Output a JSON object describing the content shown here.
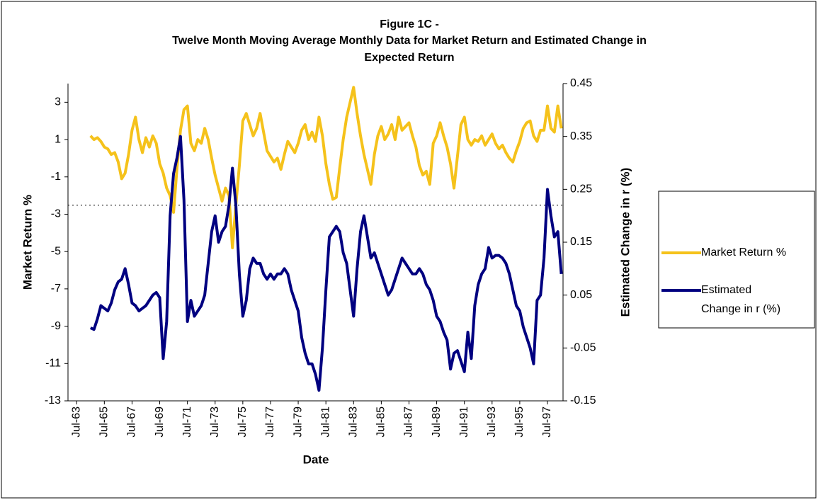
{
  "chart_data": {
    "type": "line",
    "title_lines": [
      "Figure 1C -",
      "Twelve Month Moving Average Monthly Data for Market Return and Estimated Change in",
      "Expected Return"
    ],
    "x_label": "Date",
    "y_label": "Market Return %",
    "y2_label": "Estimated Change in r (%)",
    "categories": [
      null,
      null,
      "Jul-63",
      null,
      null,
      null,
      null,
      null,
      null,
      null,
      "Jul-65",
      null,
      null,
      null,
      null,
      null,
      null,
      null,
      "Jul-67",
      null,
      null,
      null,
      null,
      null,
      null,
      null,
      "Jul-69",
      null,
      null,
      null,
      null,
      null,
      null,
      null,
      "Jul-71",
      null,
      null,
      null,
      null,
      null,
      null,
      null,
      "Jul-73",
      null,
      null,
      null,
      null,
      null,
      null,
      null,
      "Jul-75",
      null,
      null,
      null,
      null,
      null,
      null,
      null,
      "Jul-77",
      null,
      null,
      null,
      null,
      null,
      null,
      null,
      "Jul-79",
      null,
      null,
      null,
      null,
      null,
      null,
      null,
      "Jul-81",
      null,
      null,
      null,
      null,
      null,
      null,
      null,
      "Jul-83",
      null,
      null,
      null,
      null,
      null,
      null,
      null,
      "Jul-85",
      null,
      null,
      null,
      null,
      null,
      null,
      null,
      "Jul-87",
      null,
      null,
      null,
      null,
      null,
      null,
      null,
      "Jul-89",
      null,
      null,
      null,
      null,
      null,
      null,
      null,
      "Jul-91",
      null,
      null,
      null,
      null,
      null,
      null,
      null,
      "Jul-93",
      null,
      null,
      null,
      null,
      null,
      null,
      null,
      "Jul-95",
      null,
      null,
      null,
      null,
      null,
      null,
      null,
      "Jul-97",
      null,
      null,
      null,
      null
    ],
    "series": [
      {
        "name": "Market Return %",
        "color": "#f5c21b",
        "axis": "y",
        "values": [
          null,
          null,
          null,
          null,
          null,
          null,
          1.2,
          1.0,
          1.1,
          0.9,
          0.6,
          0.5,
          0.2,
          0.3,
          -0.2,
          -1.1,
          -0.8,
          0.2,
          1.5,
          2.2,
          1.0,
          0.3,
          1.1,
          0.6,
          1.2,
          0.8,
          -0.3,
          -0.8,
          -1.6,
          -2.0,
          -2.9,
          -0.5,
          1.5,
          2.6,
          2.8,
          0.8,
          0.4,
          1.0,
          0.8,
          1.6,
          1.0,
          0.0,
          -0.9,
          -1.6,
          -2.3,
          -1.6,
          -2.0,
          -4.8,
          -2.5,
          -0.4,
          2.0,
          2.4,
          1.8,
          1.2,
          1.6,
          2.4,
          1.4,
          0.4,
          0.1,
          -0.2,
          0.0,
          -0.6,
          0.2,
          0.9,
          0.6,
          0.3,
          0.8,
          1.5,
          1.8,
          1.0,
          1.4,
          0.9,
          2.2,
          1.2,
          -0.3,
          -1.4,
          -2.2,
          -2.1,
          -0.5,
          1.0,
          2.2,
          3.0,
          3.8,
          2.4,
          1.2,
          0.2,
          -0.6,
          -1.4,
          0.2,
          1.2,
          1.7,
          1.0,
          1.3,
          1.8,
          1.0,
          2.2,
          1.5,
          1.7,
          1.9,
          1.2,
          0.6,
          -0.4,
          -0.9,
          -0.7,
          -1.4,
          0.8,
          1.2,
          1.9,
          1.2,
          0.6,
          -0.3,
          -1.6,
          0.1,
          1.8,
          2.2,
          1.0,
          0.7,
          1.0,
          0.9,
          1.2,
          0.7,
          1.0,
          1.3,
          0.8,
          0.5,
          0.7,
          0.3,
          0.0,
          -0.2,
          0.4,
          0.9,
          1.6,
          1.9,
          2.0,
          1.2,
          0.9,
          1.5,
          1.5,
          2.8,
          1.6,
          1.4,
          2.8,
          1.6
        ]
      },
      {
        "name": "Estimated Change in r (%)",
        "color": "#000080",
        "axis": "y2",
        "values": [
          null,
          null,
          null,
          null,
          null,
          null,
          -0.012,
          -0.015,
          0.005,
          0.03,
          0.025,
          0.02,
          0.035,
          0.06,
          0.075,
          0.08,
          0.1,
          0.07,
          0.035,
          0.03,
          0.02,
          0.025,
          0.03,
          0.04,
          0.05,
          0.055,
          0.045,
          -0.07,
          0.0,
          0.2,
          0.28,
          0.31,
          0.35,
          0.23,
          0.0,
          0.04,
          0.01,
          0.02,
          0.03,
          0.05,
          0.11,
          0.17,
          0.2,
          0.15,
          0.17,
          0.18,
          0.22,
          0.29,
          0.22,
          0.09,
          0.01,
          0.04,
          0.1,
          0.12,
          0.11,
          0.11,
          0.09,
          0.08,
          0.09,
          0.08,
          0.09,
          0.09,
          0.1,
          0.09,
          0.06,
          0.04,
          0.02,
          -0.03,
          -0.06,
          -0.08,
          -0.08,
          -0.1,
          -0.13,
          -0.05,
          0.06,
          0.16,
          0.17,
          0.18,
          0.17,
          0.13,
          0.11,
          0.06,
          0.01,
          0.1,
          0.17,
          0.2,
          0.16,
          0.12,
          0.13,
          0.11,
          0.09,
          0.07,
          0.05,
          0.06,
          0.08,
          0.1,
          0.12,
          0.11,
          0.1,
          0.09,
          0.09,
          0.1,
          0.09,
          0.07,
          0.06,
          0.04,
          0.01,
          0.0,
          -0.02,
          -0.035,
          -0.09,
          -0.06,
          -0.055,
          -0.075,
          -0.095,
          -0.02,
          -0.07,
          0.03,
          0.07,
          0.09,
          0.1,
          0.14,
          0.12,
          0.125,
          0.125,
          0.12,
          0.11,
          0.09,
          0.06,
          0.03,
          0.02,
          -0.01,
          -0.03,
          -0.05,
          -0.08,
          0.04,
          0.05,
          0.12,
          0.25,
          0.2,
          0.16,
          0.17,
          0.09
        ]
      }
    ],
    "ylim": [
      -13,
      4
    ],
    "yticks": [
      -13,
      -11,
      -9,
      -7,
      -5,
      -3,
      -1,
      1,
      3
    ],
    "y2lim": [
      -0.15,
      0.45
    ],
    "y2ticks": [
      -0.15,
      -0.05,
      0.05,
      0.15,
      0.25,
      0.35,
      0.45
    ],
    "reference_line": {
      "value": 0.22,
      "axis": "y2",
      "style": "dotted"
    },
    "grid": false,
    "legend": "right"
  }
}
